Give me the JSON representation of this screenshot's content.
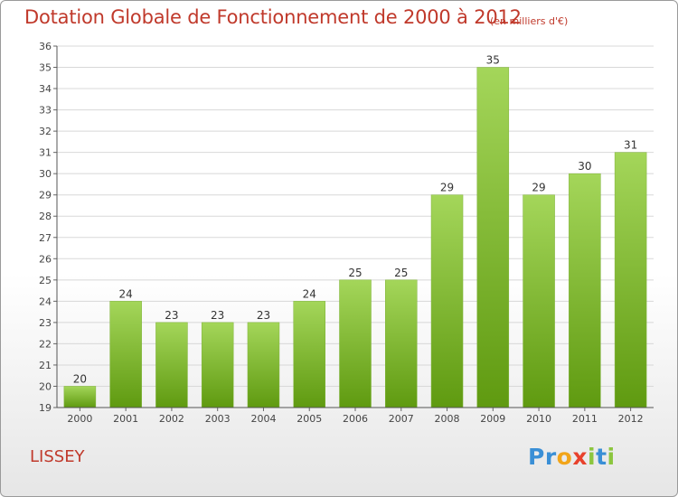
{
  "header": {
    "title": "Dotation Globale de Fonctionnement de 2000 à 2012",
    "subtitle": "(en milliers d'€)"
  },
  "footer": {
    "commune": "LISSEY",
    "logo_letters": [
      {
        "char": "P",
        "color": "#3a8fd6"
      },
      {
        "char": "r",
        "color": "#3a8fd6"
      },
      {
        "char": "o",
        "color": "#f2a51a"
      },
      {
        "char": "x",
        "color": "#e8412c"
      },
      {
        "char": "i",
        "color": "#8cc63f"
      },
      {
        "char": "t",
        "color": "#3a8fd6"
      },
      {
        "char": "i",
        "color": "#8cc63f"
      }
    ]
  },
  "chart_data": {
    "type": "bar",
    "categories": [
      "2000",
      "2001",
      "2002",
      "2003",
      "2004",
      "2005",
      "2006",
      "2007",
      "2008",
      "2009",
      "2010",
      "2011",
      "2012"
    ],
    "values": [
      20,
      24,
      23,
      23,
      23,
      24,
      25,
      25,
      29,
      35,
      29,
      30,
      31
    ],
    "title": "Dotation Globale de Fonctionnement de 2000 à 2012",
    "subtitle": "(en milliers d'€)",
    "xlabel": "",
    "ylabel": "",
    "ylim": [
      19,
      36
    ],
    "yticks": [
      19,
      20,
      21,
      22,
      23,
      24,
      25,
      26,
      27,
      28,
      29,
      30,
      31,
      32,
      33,
      34,
      35,
      36
    ],
    "grid": true,
    "legend": "none",
    "colors": {
      "bar_top": "#a4d65a",
      "bar_bottom": "#5f9a10",
      "grid": "#d8d8d8",
      "title": "#c0392b"
    }
  }
}
